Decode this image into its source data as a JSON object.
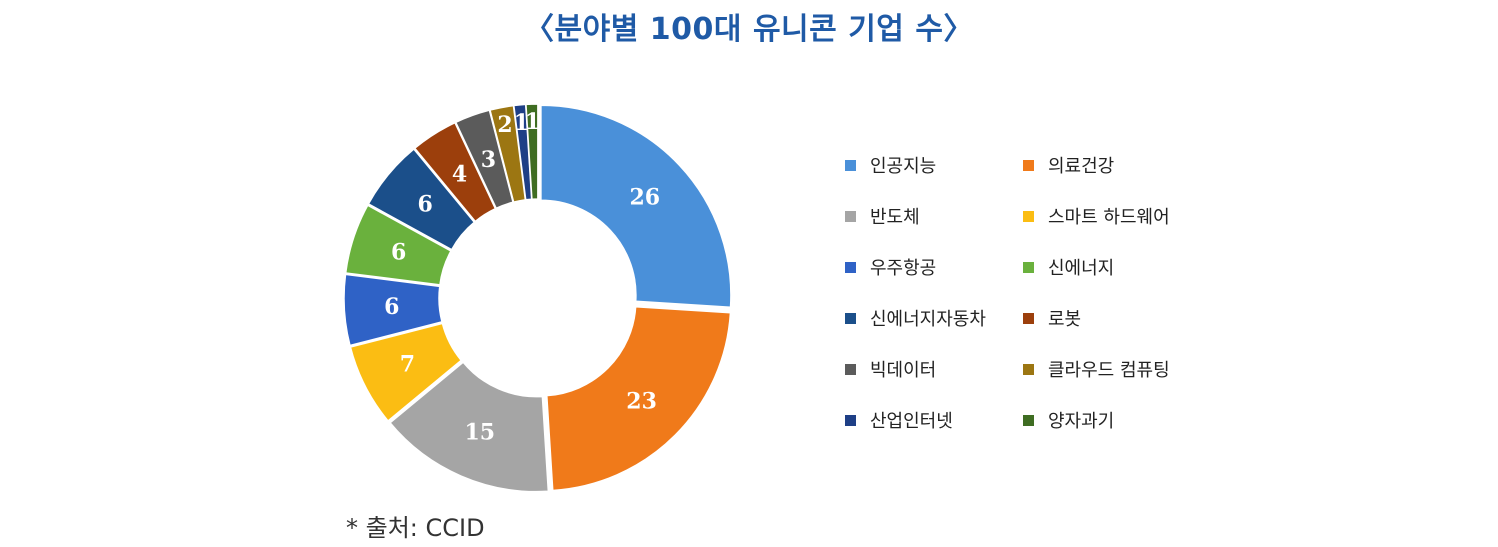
{
  "title": "〈분야별 100대 유니콘 기업 수〉",
  "source": "* 출처: CCID",
  "chart_data": {
    "type": "pie",
    "title": "〈분야별 100대 유니콘 기업 수〉",
    "legend_position": "right",
    "categories": [
      "인공지능",
      "의료건강",
      "반도체",
      "스마트 하드웨어",
      "우주항공",
      "신에너지",
      "신에너지자동차",
      "로봇",
      "빅데이터",
      "클라우드 컴퓨팅",
      "산업인터넷",
      "양자과기"
    ],
    "values": [
      26,
      23,
      15,
      7,
      6,
      6,
      6,
      4,
      3,
      2,
      1,
      1
    ],
    "colors": [
      "#4a90d9",
      "#f07a1a",
      "#a5a5a5",
      "#fbbd13",
      "#2f62c6",
      "#6ab13d",
      "#1b4f8a",
      "#9c3f0c",
      "#5b5b5b",
      "#9c7612",
      "#1e3f86",
      "#3f6d22"
    ]
  }
}
